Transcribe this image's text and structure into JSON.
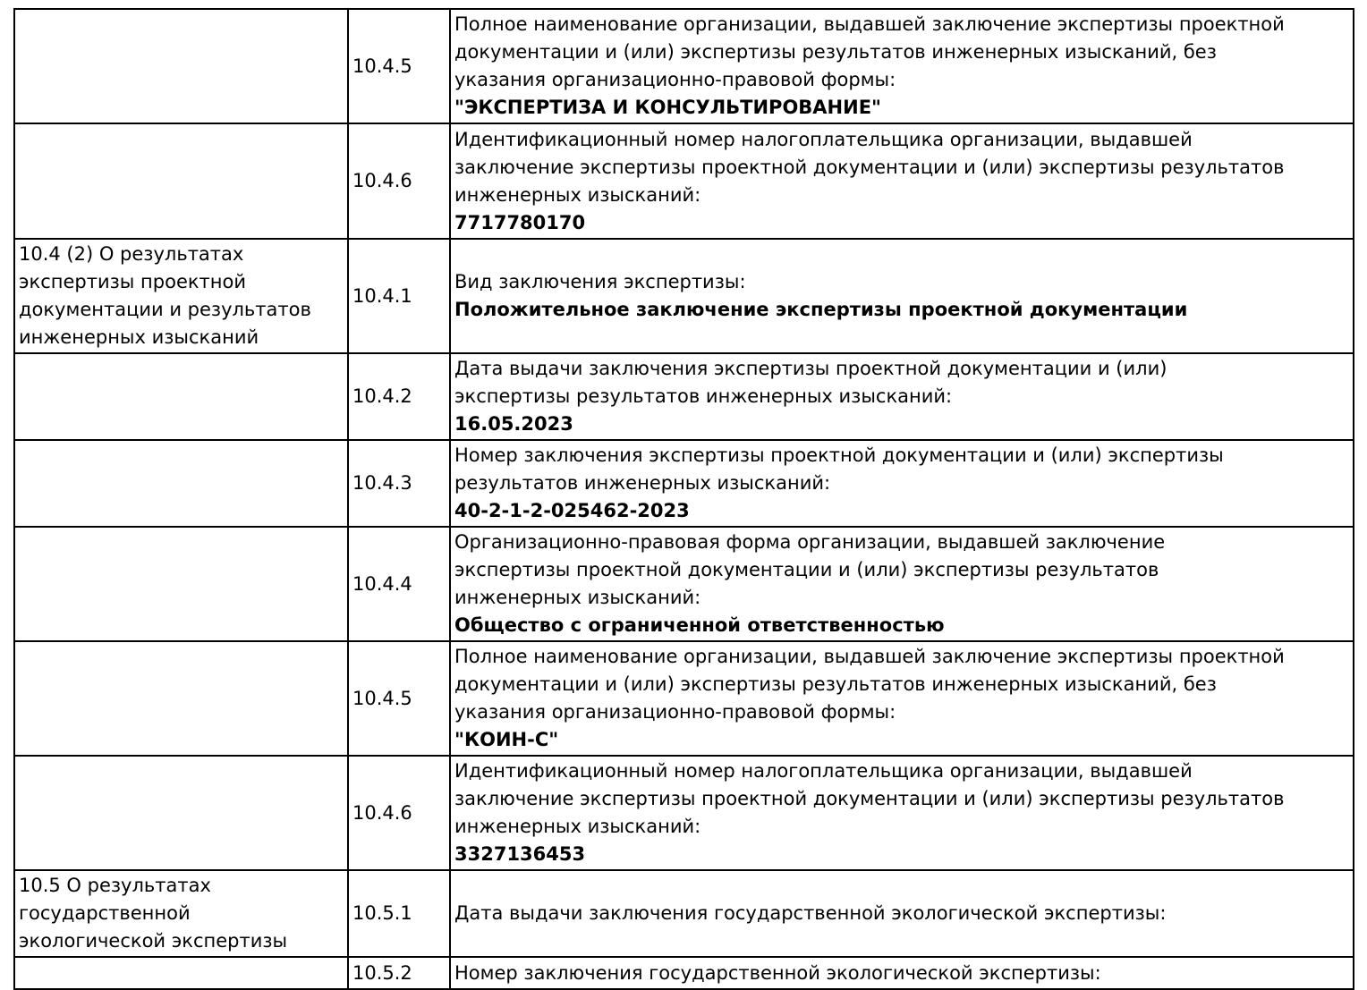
{
  "theme": {
    "background": "#ffffff",
    "border_color": "#000000",
    "text_color": "#000000"
  },
  "document": {
    "rows": [
      {
        "section": "",
        "code": "10.4.5",
        "label": "Полное наименование организации, выдавшей заключение экспертизы проектной документации и (или) экспертизы результатов инженерных изысканий, без указания организационно-правовой формы:",
        "value": "\"ЭКСПЕРТИЗА И КОНСУЛЬТИРОВАНИЕ\""
      },
      {
        "section": "",
        "code": "10.4.6",
        "label": "Идентификационный номер налогоплательщика организации, выдавшей заключение экспертизы проектной документации и (или) экспертизы результатов инженерных изысканий:",
        "value": "7717780170"
      },
      {
        "section": "10.4 (2) О результатах экспертизы проектной документации и результатов инженерных изысканий",
        "code": "10.4.1",
        "label": "Вид заключения экспертизы:",
        "value": "Положительное заключение экспертизы проектной документации"
      },
      {
        "section": "",
        "code": "10.4.2",
        "label": "Дата выдачи заключения экспертизы проектной документации и (или) экспертизы результатов инженерных изысканий:",
        "value": "16.05.2023"
      },
      {
        "section": "",
        "code": "10.4.3",
        "label": "Номер заключения экспертизы проектной документации и (или) экспертизы результатов инженерных изысканий:",
        "value": "40-2-1-2-025462-2023"
      },
      {
        "section": "",
        "code": "10.4.4",
        "label": "Организационно-правовая форма организации, выдавшей заключение экспертизы проектной документации и (или) экспертизы результатов инженерных изысканий:",
        "value": "Общество с ограниченной ответственностью"
      },
      {
        "section": "",
        "code": "10.4.5",
        "label": "Полное наименование организации, выдавшей заключение экспертизы проектной документации и (или) экспертизы результатов инженерных изысканий, без указания организационно-правовой формы:",
        "value": "\"КОИН-С\""
      },
      {
        "section": "",
        "code": "10.4.6",
        "label": "Идентификационный номер налогоплательщика организации, выдавшей заключение экспертизы проектной документации и (или) экспертизы результатов инженерных изысканий:",
        "value": "3327136453"
      },
      {
        "section": "10.5 О результатах государственной экологической экспертизы",
        "code": "10.5.1",
        "label": "Дата выдачи заключения государственной экологической экспертизы:",
        "value": ""
      },
      {
        "section": "",
        "code": "10.5.2",
        "label": "Номер заключения государственной экологической экспертизы:",
        "value": ""
      }
    ]
  }
}
